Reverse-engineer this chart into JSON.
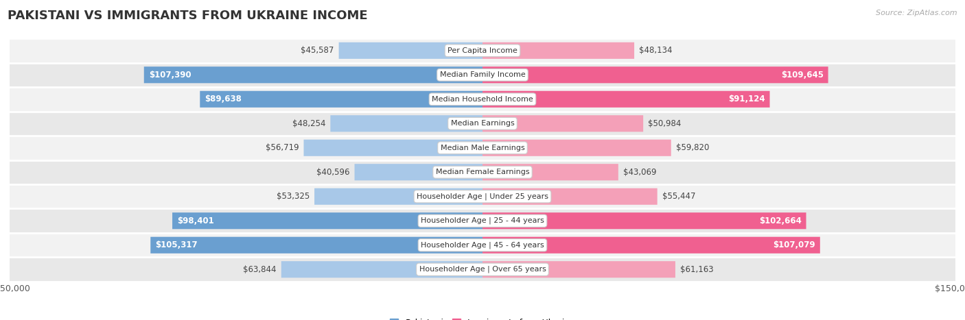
{
  "title": "PAKISTANI VS IMMIGRANTS FROM UKRAINE INCOME",
  "source": "Source: ZipAtlas.com",
  "categories": [
    "Per Capita Income",
    "Median Family Income",
    "Median Household Income",
    "Median Earnings",
    "Median Male Earnings",
    "Median Female Earnings",
    "Householder Age | Under 25 years",
    "Householder Age | 25 - 44 years",
    "Householder Age | 45 - 64 years",
    "Householder Age | Over 65 years"
  ],
  "pakistani_values": [
    45587,
    107390,
    89638,
    48254,
    56719,
    40596,
    53325,
    98401,
    105317,
    63844
  ],
  "ukraine_values": [
    48134,
    109645,
    91124,
    50984,
    59820,
    43069,
    55447,
    102664,
    107079,
    61163
  ],
  "pakistani_labels": [
    "$45,587",
    "$107,390",
    "$89,638",
    "$48,254",
    "$56,719",
    "$40,596",
    "$53,325",
    "$98,401",
    "$105,317",
    "$63,844"
  ],
  "ukraine_labels": [
    "$48,134",
    "$109,645",
    "$91,124",
    "$50,984",
    "$59,820",
    "$43,069",
    "$55,447",
    "$102,664",
    "$107,079",
    "$61,163"
  ],
  "max_value": 150000,
  "pakistani_color_dark": "#6a9fd0",
  "pakistani_color_light": "#a8c8e8",
  "ukraine_color_dark": "#f06090",
  "ukraine_color_light": "#f4a0b8",
  "row_bg_color_odd": "#f2f2f2",
  "row_bg_color_even": "#e8e8e8",
  "title_fontsize": 13,
  "label_fontsize": 8.5,
  "category_fontsize": 8,
  "legend_fontsize": 9,
  "bar_height": 0.68,
  "inside_threshold": 0.45
}
